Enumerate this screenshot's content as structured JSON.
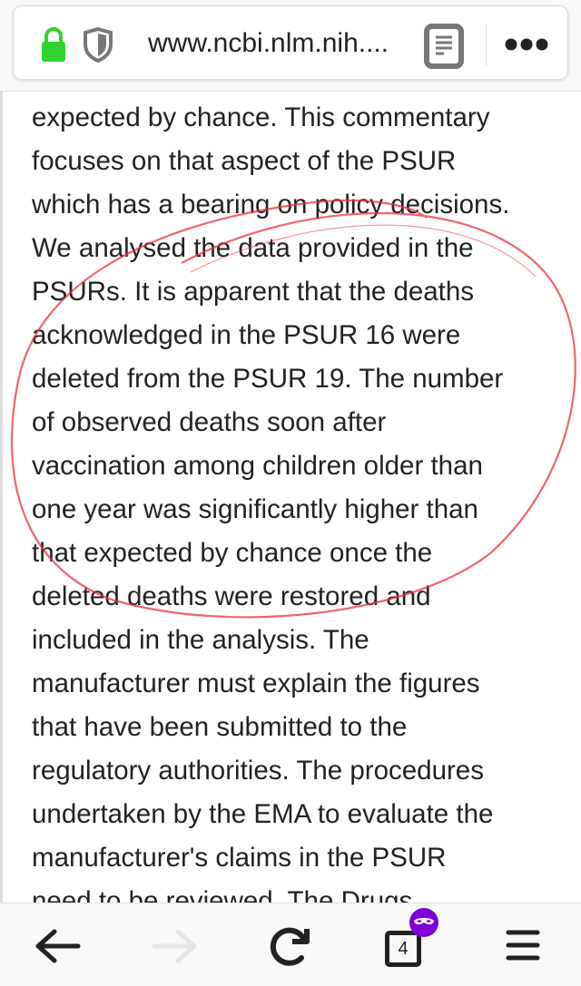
{
  "browser": {
    "url": "www.ncbi.nlm.nih....",
    "tab_count": "4",
    "icons": [
      "lock-icon",
      "shield-icon",
      "reader-view-icon",
      "more-icon",
      "back-icon",
      "forward-icon",
      "reload-icon",
      "tabs-icon",
      "private-mask-icon",
      "menu-icon"
    ],
    "lock_color": "#2ed32e",
    "private_color": "#8000d7"
  },
  "article": {
    "lines": [
      "expected by chance. This commentary",
      "focuses on that aspect of the PSUR",
      "which has a bearing on policy decisions.",
      "We analysed the data provided in the",
      "PSURs. It is apparent that the deaths",
      "acknowledged in the PSUR 16 were",
      "deleted from the PSUR 19. The number",
      "of observed deaths soon after",
      "vaccination among children older than",
      "one year was significantly higher than",
      "that expected by chance once the",
      "deleted deaths were restored and",
      "included in the analysis. The",
      "manufacturer must explain the figures",
      "that have been submitted to the",
      "regulatory authorities. The procedures",
      "undertaken by the EMA to evaluate the",
      "manufacturer's claims in the PSUR",
      "need to be reviewed. The Drugs"
    ]
  },
  "annotation": {
    "type": "hand-drawn circle",
    "color": "#e8323c"
  }
}
